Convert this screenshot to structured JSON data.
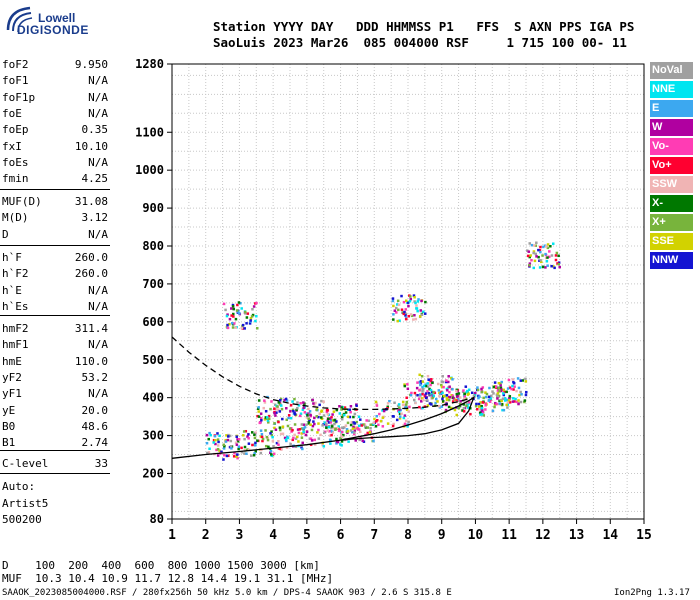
{
  "logo": {
    "line1": "Lowell",
    "line2": "DIGISONDE"
  },
  "header": {
    "row1": "Station YYYY DAY   DDD HHMMSS P1   FFS  S AXN PPS IGA PS",
    "row2": "SaoLuis 2023 Mar26  085 004000 RSF     1 715 100 00- 11"
  },
  "params_group1": [
    {
      "name": "foF2",
      "value": "9.950"
    },
    {
      "name": "foF1",
      "value": "N/A"
    },
    {
      "name": "foF1p",
      "value": "N/A"
    },
    {
      "name": "foE",
      "value": "N/A"
    },
    {
      "name": "foEp",
      "value": "0.35"
    },
    {
      "name": "fxI",
      "value": "10.10"
    },
    {
      "name": "foEs",
      "value": "N/A"
    },
    {
      "name": "fmin",
      "value": "4.25"
    }
  ],
  "params_group2": [
    {
      "name": "MUF(D)",
      "value": "31.08"
    },
    {
      "name": "M(D)",
      "value": "3.12"
    },
    {
      "name": "D",
      "value": "N/A"
    }
  ],
  "params_group3": [
    {
      "name": "h`F",
      "value": "260.0"
    },
    {
      "name": "h`F2",
      "value": "260.0"
    },
    {
      "name": "h`E",
      "value": "N/A"
    },
    {
      "name": "h`Es",
      "value": "N/A"
    }
  ],
  "params_group4": [
    {
      "name": "hmF2",
      "value": "311.4"
    },
    {
      "name": "hmF1",
      "value": "N/A"
    },
    {
      "name": "hmE",
      "value": "110.0"
    },
    {
      "name": "yF2",
      "value": "53.2"
    },
    {
      "name": "yF1",
      "value": "N/A"
    },
    {
      "name": "yE",
      "value": "20.0"
    },
    {
      "name": "B0",
      "value": "48.6"
    },
    {
      "name": "B1",
      "value": "2.74"
    }
  ],
  "clevel": {
    "name": "C-level",
    "value": "33"
  },
  "auto": [
    "Auto:",
    "Artist5",
    "500200"
  ],
  "bottom": {
    "d_row": "D    100  200  400  600  800 1000 1500 3000 [km]",
    "muf_row": "MUF  10.3 10.4 10.9 11.7 12.8 14.4 19.1 31.1 [MHz]",
    "footer_left": "SAAOK_2023085004000.RSF / 280fx256h 50 kHz 5.0 km / DPS-4 SAAOK 903 / 2.6 S 315.8 E",
    "footer_right": "Ion2Png 1.3.17"
  },
  "legend": [
    {
      "label": "NoVal",
      "color": "#a0a0a0"
    },
    {
      "label": "NNE",
      "color": "#00e5f0"
    },
    {
      "label": "E",
      "color": "#3ca8f0"
    },
    {
      "label": "W",
      "color": "#b000a0"
    },
    {
      "label": "Vo-",
      "color": "#ff3cb4"
    },
    {
      "label": "Vo+",
      "color": "#ff0030"
    },
    {
      "label": "SSW",
      "color": "#f0b4b4"
    },
    {
      "label": "X-",
      "color": "#007800"
    },
    {
      "label": "X+",
      "color": "#78b43c"
    },
    {
      "label": "SSE",
      "color": "#d2d200"
    },
    {
      "label": "NNW",
      "color": "#1414d2"
    }
  ],
  "chart_data": {
    "type": "scatter",
    "xlabel": "",
    "ylabel": "",
    "xlim": [
      1,
      15
    ],
    "ylim": [
      80,
      1280
    ],
    "x_ticks": [
      "1",
      "2",
      "3",
      "4",
      "5",
      "6",
      "7",
      "8",
      "9",
      "10",
      "11",
      "12",
      "13",
      "14",
      "15"
    ],
    "y_ticks": [
      "80",
      "200",
      "300",
      "400",
      "500",
      "600",
      "700",
      "800",
      "900",
      "1000",
      "1100",
      "1280"
    ],
    "grid": true,
    "series": [
      {
        "name": "profile (dashed)",
        "style": "dashed",
        "x": [
          1.0,
          1.5,
          2.0,
          2.5,
          3.0,
          3.5,
          4.0,
          4.5,
          5.0,
          5.5,
          6.0,
          6.5,
          7.0,
          7.5,
          8.0,
          8.5,
          9.0,
          9.5,
          9.95
        ],
        "y": [
          560,
          520,
          485,
          455,
          430,
          410,
          395,
          385,
          378,
          373,
          370,
          369,
          369,
          370,
          372,
          375,
          380,
          390,
          400
        ]
      },
      {
        "name": "trace (solid)",
        "style": "solid",
        "x": [
          1.0,
          2.0,
          3.0,
          4.0,
          5.0,
          6.0,
          7.0,
          7.5,
          8.0,
          8.5,
          9.0,
          9.5,
          9.8,
          9.95,
          9.8,
          9.5,
          9.0,
          8.5,
          8.0,
          7.5,
          7.0,
          6.5,
          6.0
        ],
        "y": [
          240,
          250,
          258,
          267,
          276,
          288,
          305,
          315,
          328,
          342,
          358,
          378,
          392,
          400,
          365,
          332,
          315,
          305,
          300,
          297,
          295,
          292,
          288
        ]
      },
      {
        "name": "echo clusters",
        "style": "points",
        "x": [
          2.5,
          3.5,
          4.5,
          5.5,
          6.5,
          7.5,
          8.3,
          8.8,
          9.3,
          9.8,
          10.5,
          11.0,
          4.0,
          5.0,
          6.0,
          3.0,
          8.0,
          12.0
        ],
        "y": [
          275,
          285,
          300,
          310,
          320,
          360,
          410,
          430,
          400,
          390,
          400,
          420,
          370,
          365,
          350,
          620,
          640,
          780
        ]
      }
    ]
  }
}
